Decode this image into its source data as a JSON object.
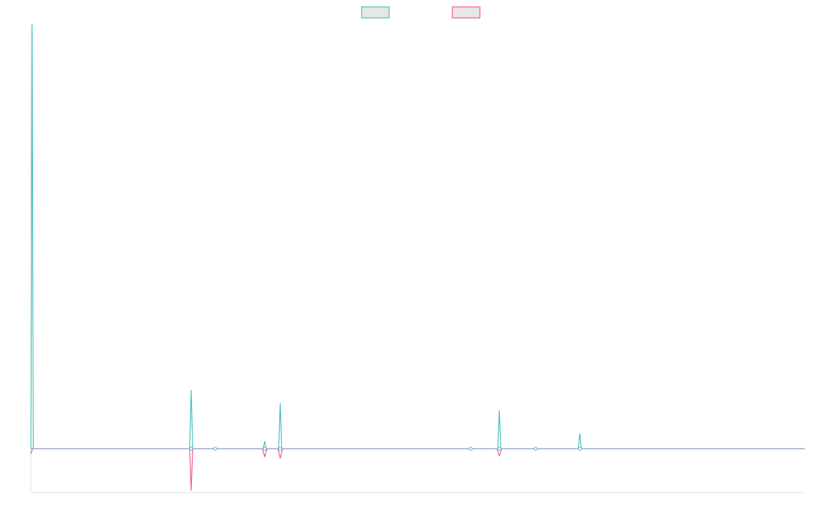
{
  "chart_data": {
    "type": "line",
    "title": "",
    "xlabel": "",
    "ylabel": "",
    "x_count": 101,
    "ylim": [
      -6,
      58
    ],
    "grid": false,
    "legend_position": "top-center",
    "series": [
      {
        "color": "#3fbdb9",
        "points": [
          [
            0,
            0
          ],
          [
            0.15,
            58
          ],
          [
            0.3,
            0
          ],
          [
            20.5,
            0
          ],
          [
            20.7,
            8
          ],
          [
            20.9,
            0
          ],
          [
            23.5,
            0
          ],
          [
            23.8,
            0.15
          ],
          [
            24.1,
            0
          ],
          [
            30,
            0
          ],
          [
            30.2,
            1
          ],
          [
            30.4,
            0
          ],
          [
            32,
            0
          ],
          [
            32.2,
            6.2
          ],
          [
            32.4,
            0
          ],
          [
            56.5,
            0
          ],
          [
            56.8,
            0
          ],
          [
            57.1,
            0
          ],
          [
            60.3,
            0
          ],
          [
            60.5,
            5.2
          ],
          [
            60.7,
            0
          ],
          [
            65,
            0
          ],
          [
            65.2,
            0
          ],
          [
            65.4,
            0
          ],
          [
            70.7,
            0
          ],
          [
            70.9,
            2.1
          ],
          [
            71.1,
            0
          ],
          [
            100,
            0
          ]
        ]
      },
      {
        "color": "#f2547f",
        "points": [
          [
            0,
            -0.7
          ],
          [
            0.2,
            0
          ],
          [
            20.5,
            0
          ],
          [
            20.7,
            -5.7
          ],
          [
            20.9,
            0
          ],
          [
            29.9,
            0
          ],
          [
            30.2,
            -1.1
          ],
          [
            30.5,
            0
          ],
          [
            31.9,
            0
          ],
          [
            32.2,
            -1.3
          ],
          [
            32.5,
            0
          ],
          [
            60.2,
            0
          ],
          [
            60.5,
            -1.0
          ],
          [
            60.8,
            0
          ],
          [
            100,
            0
          ]
        ]
      }
    ],
    "markers": [
      [
        20.7,
        0
      ],
      [
        23.8,
        0
      ],
      [
        30.2,
        0
      ],
      [
        32.2,
        0
      ],
      [
        56.8,
        0
      ],
      [
        60.5,
        0
      ],
      [
        65.2,
        0
      ],
      [
        70.9,
        0
      ]
    ]
  }
}
